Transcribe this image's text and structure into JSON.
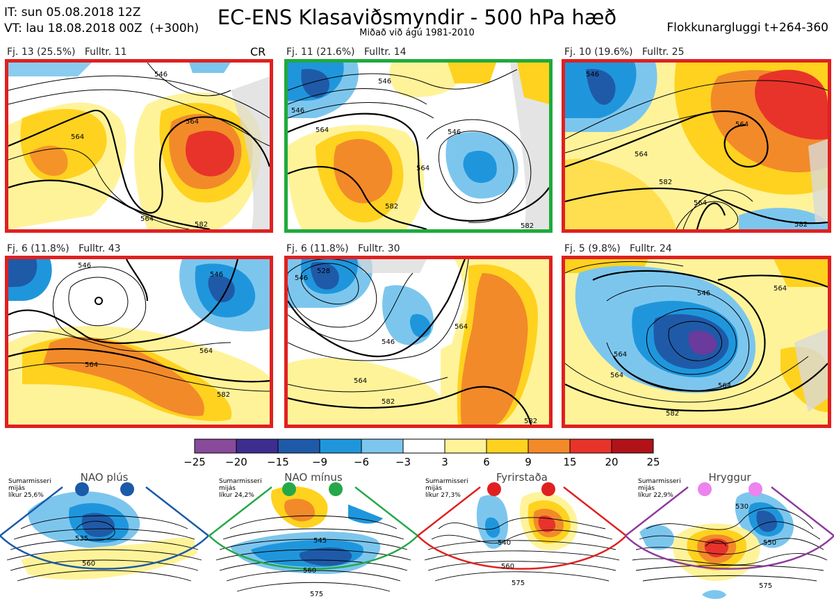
{
  "header": {
    "issue_time": "IT: sun 05.08.2018 12Z",
    "valid_time": "VT: lau 18.08.2018 00Z  (+300h)",
    "title": "EC-ENS Klasaviðsmyndir - 500 hPa hæð",
    "subtitle": "Miðað við ágú 1981-2010",
    "window": "Flokkunargluggi t+264-360"
  },
  "cr_label": "CR",
  "panels": [
    {
      "label": "Fj. 13 (25.5%)   Fulltr. 11",
      "border": "#e02020",
      "contours": [
        "546",
        "564",
        "564",
        "564",
        "582"
      ]
    },
    {
      "label": "Fj. 11 (21.6%)   Fulltr. 14",
      "border": "#1faa3c",
      "contours": [
        "546",
        "546",
        "564",
        "546",
        "564",
        "582",
        "582"
      ]
    },
    {
      "label": "Fj. 10 (19.6%)   Fulltr. 25",
      "border": "#e02020",
      "contours": [
        "546",
        "564",
        "564",
        "582",
        "564",
        "582"
      ]
    },
    {
      "label": "Fj. 6 (11.8%)   Fulltr. 43",
      "border": "#e02020",
      "contours": [
        "546",
        "546",
        "564",
        "564",
        "582"
      ]
    },
    {
      "label": "Fj. 6 (11.8%)   Fulltr. 30",
      "border": "#e02020",
      "contours": [
        "528",
        "546",
        "546",
        "564",
        "564",
        "582",
        "582"
      ]
    },
    {
      "label": "Fj. 5 (9.8%)   Fulltr. 24",
      "border": "#e02020",
      "contours": [
        "564",
        "546",
        "564",
        "564",
        "564",
        "582"
      ]
    }
  ],
  "colorbar": {
    "ticks": [
      "−25",
      "−20",
      "−15",
      "−9",
      "−6",
      "−3",
      "3",
      "6",
      "9",
      "15",
      "20",
      "25"
    ],
    "colors": [
      "#8a4a9c",
      "#3e2d8f",
      "#1f5aa8",
      "#1f96dc",
      "#7cc6ee",
      "#ffffff",
      "#fff39a",
      "#ffd21f",
      "#f28a2a",
      "#e8332a",
      "#b11218"
    ]
  },
  "regimes": [
    {
      "name": "NAO plús",
      "note": "Sumarmisseri\nmijás\nlíkur 25,6%",
      "color": "#1a5aa8",
      "dot": "#1a5aa8",
      "contours": [
        "535",
        "560"
      ]
    },
    {
      "name": "NAO mínus",
      "note": "Sumarmisseri\nmijás\nlíkur 24,2%",
      "color": "#26a84a",
      "dot": "#26a84a",
      "contours": [
        "545",
        "560",
        "575"
      ]
    },
    {
      "name": "Fyrirstaða",
      "note": "Sumarmisseri\nmijás\nlíkur 27,3%",
      "color": "#e02020",
      "dot": "#e02020",
      "contours": [
        "540",
        "560",
        "575"
      ]
    },
    {
      "name": "Hryggur",
      "note": "Sumarmisseri\nmijás\nlíkur 22,9%",
      "color": "#8e3a9c",
      "dot": "#ee82ee",
      "contours": [
        "530",
        "550",
        "575"
      ]
    }
  ]
}
